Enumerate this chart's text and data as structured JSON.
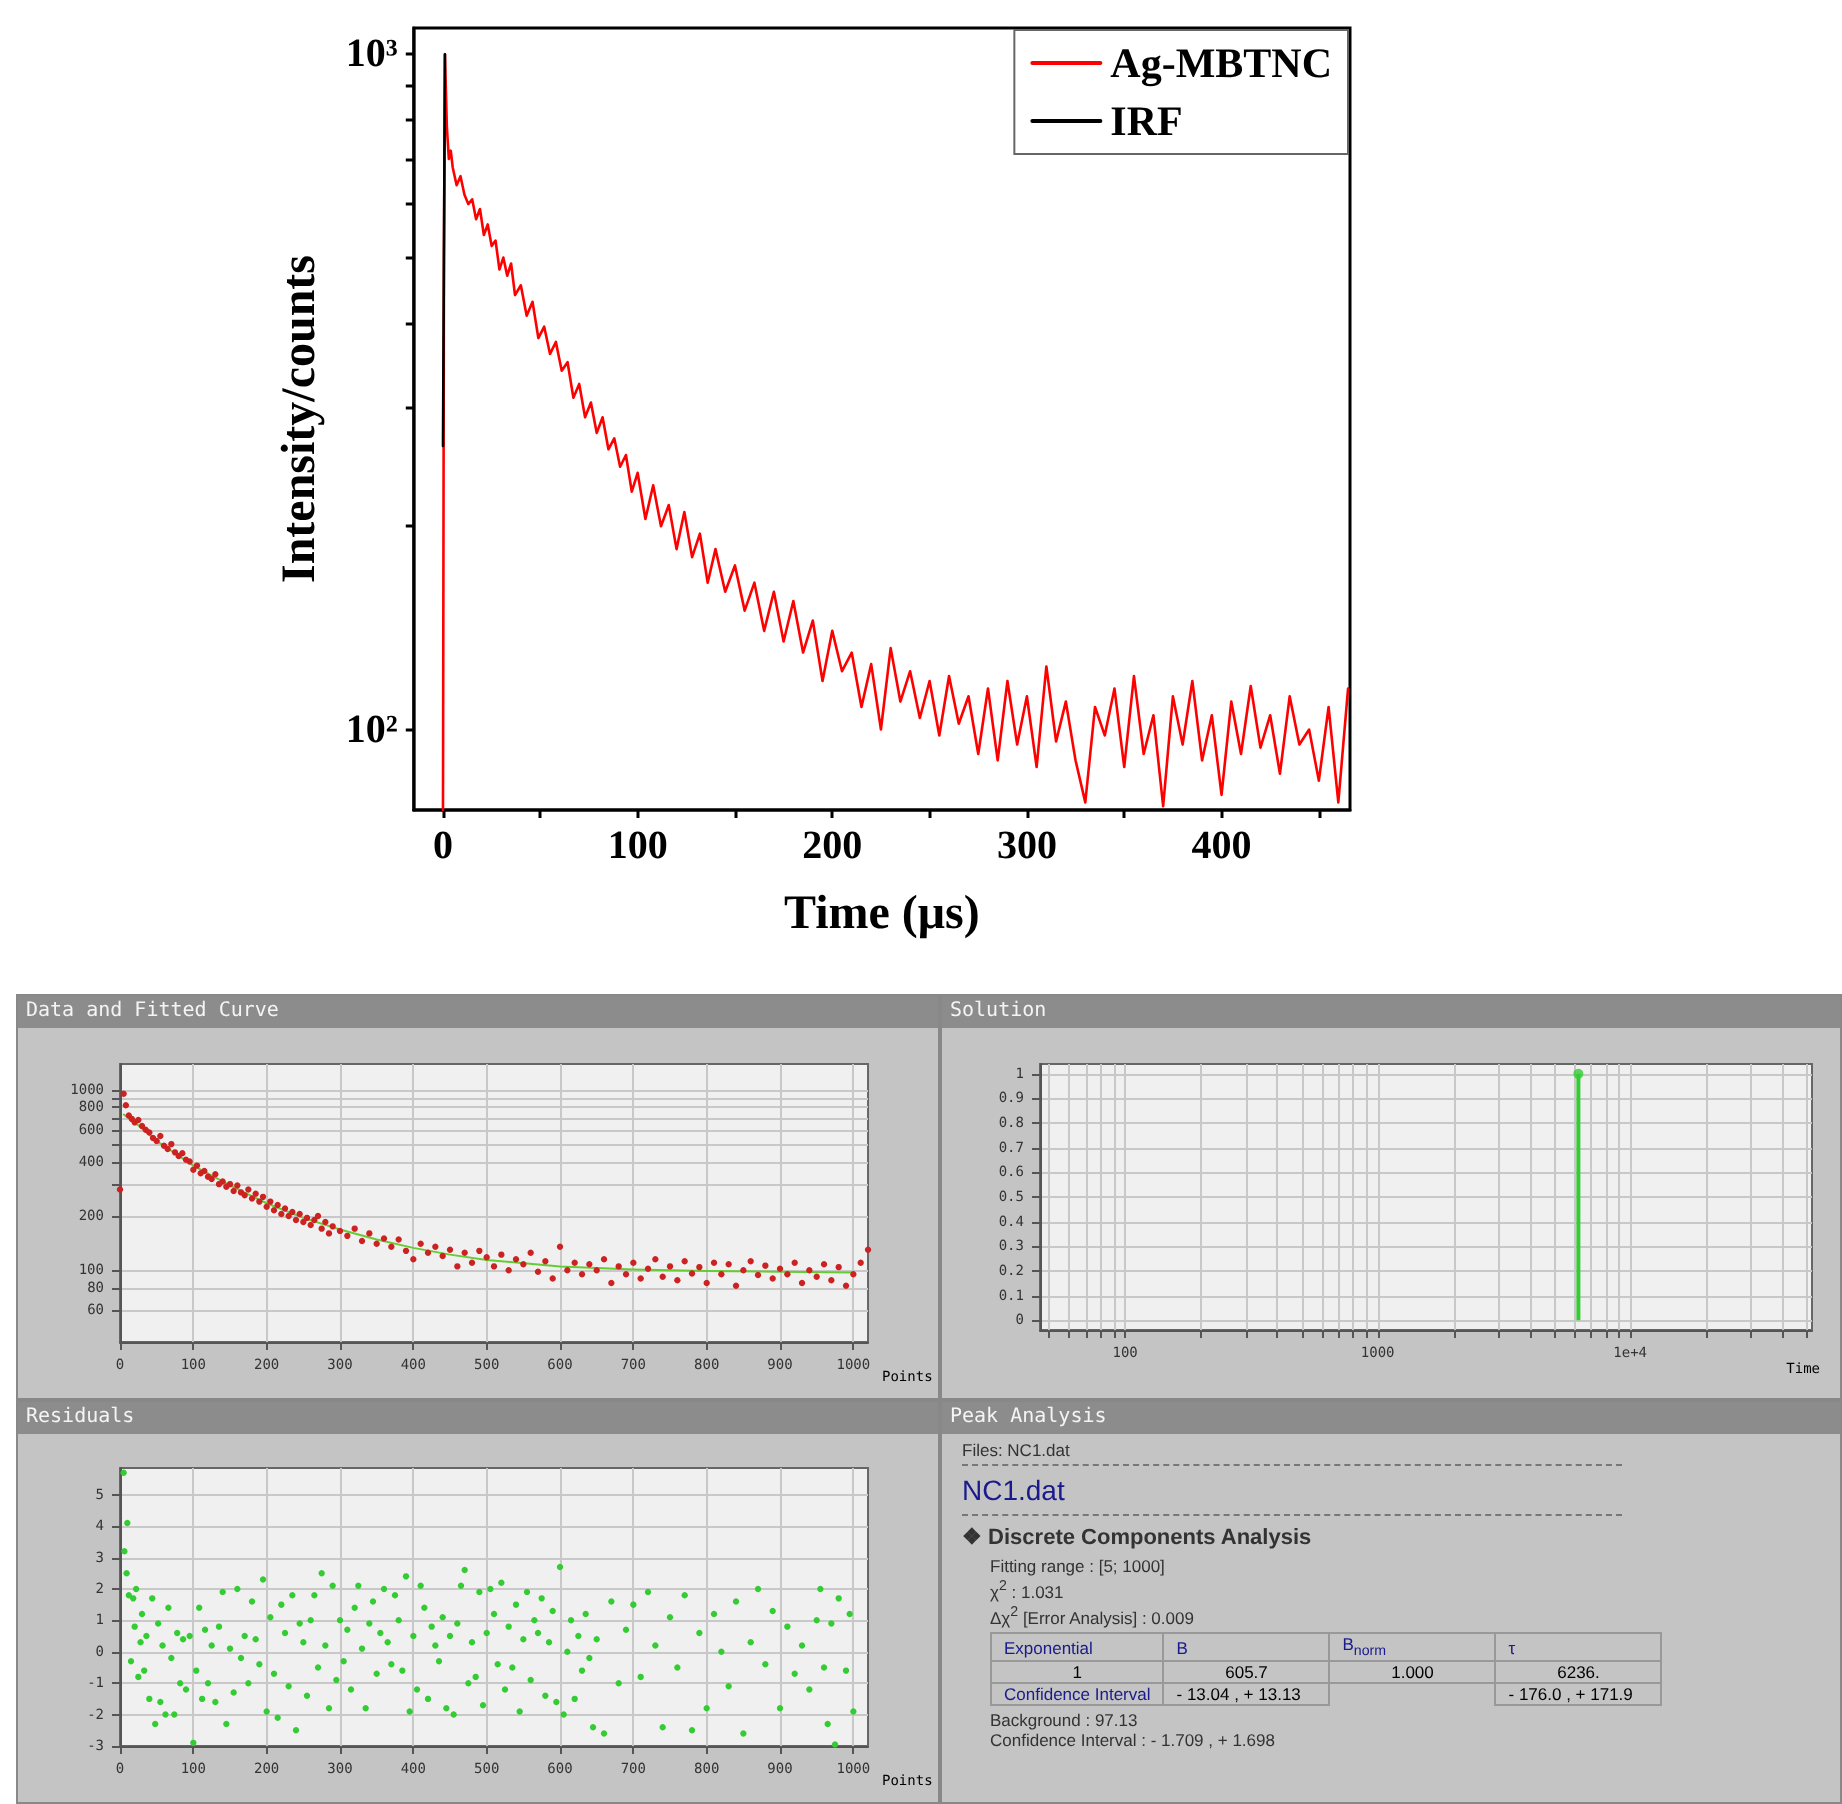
{
  "chart_data": [
    {
      "type": "line",
      "xlabel": "Time (μs)",
      "ylabel": "Intensity/counts",
      "log": "y",
      "legend": "top right",
      "marker": "none",
      "line_style": "solid",
      "grid": false,
      "xlim": [
        -15,
        466
      ],
      "xticks": [
        0,
        {
          "value": 50,
          "label": null
        },
        100,
        {
          "value": 150,
          "label": null
        },
        200,
        {
          "value": 250,
          "label": null
        },
        300,
        {
          "value": 350,
          "label": null
        },
        400,
        {
          "value": 450,
          "label": null
        }
      ],
      "ylim": [
        76,
        1094
      ],
      "yticks": [
        {
          "value": 100,
          "label": "10²"
        },
        {
          "value": 200,
          "label": null
        },
        {
          "value": 300,
          "label": null
        },
        {
          "value": 400,
          "label": null
        },
        {
          "value": 500,
          "label": null
        },
        {
          "value": 600,
          "label": null
        },
        {
          "value": 700,
          "label": null
        },
        {
          "value": 800,
          "label": null
        },
        {
          "value": 900,
          "label": null
        },
        {
          "value": 1000,
          "label": "10³"
        }
      ],
      "series": [
        {
          "name": "Ag-MBTNC",
          "color": "#ff0000",
          "x": [
            0,
            0.5,
            1,
            2,
            3,
            4,
            5,
            7,
            9,
            11,
            13,
            15,
            17,
            19,
            21,
            23,
            25,
            27,
            29,
            31,
            33,
            35,
            37,
            40,
            43,
            46,
            49,
            52,
            55,
            58,
            61,
            64,
            67,
            70,
            73,
            76,
            79,
            82,
            85,
            88,
            91,
            94,
            97,
            100,
            104,
            108,
            112,
            116,
            120,
            124,
            128,
            132,
            136,
            140,
            145,
            150,
            155,
            160,
            165,
            170,
            175,
            180,
            185,
            190,
            195,
            200,
            205,
            210,
            215,
            220,
            225,
            230,
            235,
            240,
            245,
            250,
            255,
            260,
            265,
            270,
            275,
            280,
            285,
            290,
            295,
            300,
            305,
            310,
            315,
            320,
            325,
            330,
            335,
            340,
            345,
            350,
            355,
            360,
            365,
            370,
            375,
            380,
            385,
            390,
            395,
            400,
            405,
            410,
            415,
            420,
            425,
            430,
            435,
            440,
            445,
            450,
            455,
            460,
            465
          ],
          "values": [
            76,
            500,
            1000,
            780,
            700,
            720,
            680,
            640,
            660,
            620,
            600,
            610,
            570,
            590,
            540,
            560,
            520,
            530,
            480,
            500,
            470,
            490,
            440,
            455,
            410,
            430,
            380,
            395,
            360,
            375,
            340,
            350,
            310,
            325,
            290,
            305,
            275,
            290,
            260,
            270,
            245,
            255,
            225,
            240,
            205,
            230,
            200,
            215,
            185,
            210,
            180,
            195,
            165,
            185,
            160,
            175,
            150,
            165,
            140,
            160,
            135,
            155,
            130,
            145,
            118,
            140,
            122,
            130,
            108,
            125,
            100,
            132,
            110,
            122,
            104,
            118,
            98,
            120,
            102,
            112,
            92,
            115,
            90,
            118,
            95,
            112,
            88,
            124,
            96,
            110,
            90,
            78,
            108,
            98,
            115,
            88,
            120,
            92,
            105,
            77,
            112,
            95,
            118,
            90,
            105,
            80,
            110,
            92,
            116,
            94,
            105,
            86,
            112,
            95,
            100,
            84,
            108,
            78,
            115
          ]
        },
        {
          "name": "IRF",
          "color": "#000000",
          "x": [
            0,
            1
          ],
          "values": [
            263,
            1000
          ]
        }
      ]
    },
    {
      "type": "scatter",
      "title": "Data and Fitted Curve",
      "xlabel": "Points",
      "log": "y",
      "grid": true,
      "marker": "circle",
      "xlim": [
        0,
        1020
      ],
      "xticks": [
        0,
        100,
        200,
        300,
        400,
        500,
        600,
        700,
        800,
        900,
        1000
      ],
      "ylim": [
        40,
        1390
      ],
      "yticks": [
        60,
        80,
        100,
        200,
        {
          "value": 300,
          "label": null
        },
        400,
        {
          "value": 500,
          "label": null
        },
        600,
        {
          "value": 700,
          "label": null
        },
        800,
        {
          "value": 900,
          "label": null
        },
        1000
      ],
      "series": [
        {
          "type": "scatter",
          "color": "#cc2222",
          "x": [
            0,
            5,
            8,
            12,
            16,
            20,
            25,
            30,
            35,
            40,
            45,
            50,
            55,
            60,
            65,
            70,
            75,
            80,
            85,
            90,
            95,
            100,
            105,
            110,
            115,
            120,
            125,
            130,
            135,
            140,
            145,
            150,
            155,
            160,
            165,
            170,
            175,
            180,
            185,
            190,
            195,
            200,
            205,
            210,
            215,
            220,
            225,
            230,
            235,
            240,
            245,
            250,
            255,
            260,
            265,
            270,
            275,
            280,
            285,
            290,
            300,
            310,
            320,
            330,
            340,
            350,
            360,
            370,
            380,
            390,
            400,
            410,
            420,
            430,
            440,
            450,
            460,
            470,
            480,
            490,
            500,
            510,
            520,
            530,
            540,
            550,
            560,
            570,
            580,
            590,
            600,
            610,
            620,
            630,
            640,
            650,
            660,
            670,
            680,
            690,
            700,
            710,
            720,
            730,
            740,
            750,
            760,
            770,
            780,
            790,
            800,
            810,
            820,
            830,
            840,
            850,
            860,
            870,
            880,
            890,
            900,
            910,
            920,
            930,
            940,
            950,
            960,
            970,
            980,
            990,
            1000,
            1010,
            1020
          ],
          "values": [
            280,
            950,
            820,
            720,
            690,
            660,
            680,
            630,
            600,
            580,
            540,
            520,
            555,
            490,
            470,
            500,
            450,
            430,
            445,
            410,
            400,
            360,
            380,
            345,
            355,
            330,
            320,
            340,
            300,
            310,
            290,
            300,
            275,
            295,
            270,
            260,
            280,
            250,
            265,
            240,
            255,
            225,
            240,
            215,
            230,
            205,
            220,
            200,
            210,
            190,
            205,
            185,
            195,
            178,
            190,
            200,
            170,
            185,
            160,
            175,
            165,
            155,
            170,
            145,
            160,
            140,
            150,
            135,
            148,
            128,
            115,
            140,
            125,
            135,
            120,
            130,
            105,
            125,
            110,
            128,
            118,
            105,
            122,
            100,
            115,
            108,
            125,
            98,
            112,
            90,
            135,
            100,
            110,
            95,
            108,
            100,
            115,
            85,
            105,
            95,
            110,
            90,
            102,
            115,
            92,
            105,
            88,
            112,
            96,
            104,
            85,
            110,
            95,
            108,
            82,
            100,
            112,
            94,
            106,
            90,
            102,
            95,
            110,
            85,
            100,
            92,
            108,
            88,
            104,
            82,
            95,
            110,
            130
          ]
        },
        {
          "type": "line",
          "color": "#66cc33",
          "marker": "none",
          "x": [
            5,
            20,
            50,
            100,
            150,
            200,
            250,
            300,
            350,
            400,
            450,
            500,
            600,
            700,
            800,
            900,
            1000
          ],
          "values": [
            730,
            660,
            520,
            380,
            295,
            235,
            195,
            168,
            148,
            133,
            122,
            114,
            105,
            101,
            99,
            98,
            97
          ]
        }
      ]
    },
    {
      "type": "lollipop",
      "title": "Solution",
      "xlabel": "Time",
      "log": "x",
      "grid": true,
      "marker": "circle",
      "color": "#33cc33",
      "xlim": [
        46,
        52500
      ],
      "xticks": [
        {
          "value": 50,
          "label": null
        },
        {
          "value": 60,
          "label": null
        },
        {
          "value": 70,
          "label": null
        },
        {
          "value": 80,
          "label": null
        },
        {
          "value": 90,
          "label": null
        },
        100,
        {
          "value": 200,
          "label": null
        },
        {
          "value": 300,
          "label": null
        },
        {
          "value": 400,
          "label": null
        },
        {
          "value": 500,
          "label": null
        },
        {
          "value": 600,
          "label": null
        },
        {
          "value": 700,
          "label": null
        },
        {
          "value": 800,
          "label": null
        },
        {
          "value": 900,
          "label": null
        },
        1000,
        {
          "value": 2000,
          "label": null
        },
        {
          "value": 3000,
          "label": null
        },
        {
          "value": 4000,
          "label": null
        },
        {
          "value": 5000,
          "label": null
        },
        {
          "value": 6000,
          "label": null
        },
        {
          "value": 7000,
          "label": null
        },
        {
          "value": 8000,
          "label": null
        },
        {
          "value": 9000,
          "label": null
        },
        {
          "value": 10000,
          "label": "1e+4"
        },
        {
          "value": 20000,
          "label": null
        },
        {
          "value": 30000,
          "label": null
        },
        {
          "value": 40000,
          "label": null
        },
        {
          "value": 50000,
          "label": null
        }
      ],
      "ylim": [
        -0.04,
        1.04
      ],
      "yticks": [
        0,
        0.1,
        0.2,
        0.3,
        0.4,
        0.5,
        0.6,
        0.7,
        0.8,
        0.9,
        1
      ],
      "x": [
        6236
      ],
      "values": [
        1
      ]
    },
    {
      "type": "scatter",
      "title": "Residuals",
      "xlabel": "Points",
      "grid": true,
      "marker": "circle",
      "color": "#33cc33",
      "xlim": [
        0,
        1020
      ],
      "xticks": [
        0,
        100,
        200,
        300,
        400,
        500,
        600,
        700,
        800,
        900,
        1000
      ],
      "ylim": [
        -3,
        5.85
      ],
      "yticks": [
        -3,
        -2,
        -1,
        0,
        1,
        2,
        3,
        4,
        5
      ],
      "x": [
        5,
        6,
        9,
        10,
        12,
        15,
        18,
        20,
        22,
        25,
        28,
        30,
        33,
        36,
        40,
        44,
        48,
        52,
        55,
        58,
        62,
        66,
        70,
        74,
        78,
        82,
        86,
        90,
        95,
        100,
        104,
        108,
        112,
        116,
        120,
        125,
        130,
        135,
        140,
        145,
        150,
        155,
        160,
        165,
        170,
        175,
        180,
        185,
        190,
        195,
        200,
        205,
        210,
        215,
        220,
        225,
        230,
        235,
        240,
        245,
        250,
        255,
        260,
        265,
        270,
        275,
        280,
        285,
        290,
        295,
        300,
        305,
        310,
        315,
        320,
        325,
        330,
        335,
        340,
        345,
        350,
        355,
        360,
        365,
        370,
        375,
        380,
        385,
        390,
        395,
        400,
        405,
        410,
        415,
        420,
        425,
        430,
        435,
        440,
        445,
        450,
        455,
        460,
        465,
        470,
        475,
        480,
        485,
        490,
        495,
        500,
        505,
        510,
        515,
        520,
        525,
        530,
        535,
        540,
        545,
        550,
        555,
        560,
        565,
        570,
        575,
        580,
        585,
        590,
        595,
        600,
        605,
        610,
        615,
        620,
        625,
        630,
        635,
        640,
        645,
        650,
        660,
        670,
        680,
        690,
        700,
        710,
        720,
        730,
        740,
        750,
        760,
        770,
        780,
        790,
        800,
        810,
        820,
        830,
        840,
        850,
        860,
        870,
        880,
        890,
        900,
        910,
        920,
        930,
        940,
        950,
        955,
        960,
        965,
        970,
        975,
        980,
        990,
        995,
        1000
      ],
      "values": [
        5.7,
        3.2,
        2.5,
        4.1,
        1.8,
        -0.3,
        1.7,
        0.8,
        2.0,
        -0.8,
        0.3,
        1.2,
        -0.6,
        0.5,
        -1.5,
        1.7,
        -2.3,
        0.9,
        -1.6,
        0.2,
        -2.0,
        1.4,
        -0.2,
        -2.0,
        0.6,
        -1.0,
        0.4,
        -1.2,
        0.5,
        -2.9,
        -0.6,
        1.4,
        -1.5,
        0.7,
        -1.0,
        0.2,
        -1.6,
        0.8,
        1.9,
        -2.3,
        0.1,
        -1.3,
        2.0,
        -0.2,
        0.5,
        -1.0,
        1.6,
        0.4,
        -0.4,
        2.3,
        -1.9,
        1.1,
        -0.7,
        -2.1,
        1.5,
        0.6,
        -1.1,
        1.8,
        -2.5,
        0.9,
        0.3,
        -1.4,
        1.0,
        1.8,
        -0.5,
        2.5,
        0.2,
        -1.8,
        2.1,
        -0.9,
        1.0,
        -0.3,
        0.7,
        -1.2,
        1.4,
        2.1,
        0.1,
        -1.8,
        0.9,
        1.6,
        -0.7,
        0.6,
        2.0,
        0.3,
        -0.4,
        1.8,
        1.0,
        -0.6,
        2.4,
        -1.9,
        0.5,
        -1.2,
        2.1,
        1.4,
        -1.5,
        0.8,
        0.2,
        -0.3,
        1.1,
        -1.8,
        0.5,
        -2.0,
        0.9,
        2.1,
        2.6,
        -1.0,
        0.3,
        -0.8,
        1.9,
        -1.7,
        0.6,
        2.0,
        1.2,
        -0.4,
        2.2,
        -1.2,
        0.8,
        -0.5,
        1.5,
        -1.9,
        0.4,
        1.9,
        -0.9,
        1.0,
        0.6,
        1.7,
        -1.4,
        0.3,
        1.3,
        -1.6,
        2.7,
        -2.0,
        0.0,
        1.0,
        -1.5,
        0.5,
        -0.6,
        1.2,
        -0.2,
        -2.4,
        0.4,
        -2.6,
        1.6,
        -1.0,
        0.7,
        1.5,
        -0.8,
        1.9,
        0.2,
        -2.4,
        1.1,
        -0.5,
        1.8,
        -2.5,
        0.6,
        -1.8,
        1.2,
        0.0,
        -1.1,
        1.6,
        -2.6,
        0.3,
        2.0,
        -0.4,
        1.3,
        -1.8,
        0.8,
        -0.7,
        0.2,
        -1.2,
        1.0,
        2.0,
        -0.5,
        -2.3,
        0.9,
        -2.95,
        1.7,
        -0.6,
        1.2,
        -1.9
      ]
    },
    {
      "type": "other",
      "title": "Peak Analysis",
      "annotations": [
        "Files: NC1.dat",
        "NC1.dat",
        "❖ Discrete Components Analysis",
        "Fitting range : [5; 1000]",
        "χ$^{2}$ : 1.031",
        "Δχ$^{2}$ [Error Analysis] : 0.009",
        "Exponential",
        "B",
        "B$_{norm}$",
        "τ",
        "1",
        "605.7",
        "1.000",
        "6236.",
        "Confidence Interval",
        "- 13.04 , + 13.13",
        "- 176.0 , + 171.9",
        "Background : 97.13",
        "Confidence Interval : - 1.709 , + 1.698"
      ]
    }
  ]
}
